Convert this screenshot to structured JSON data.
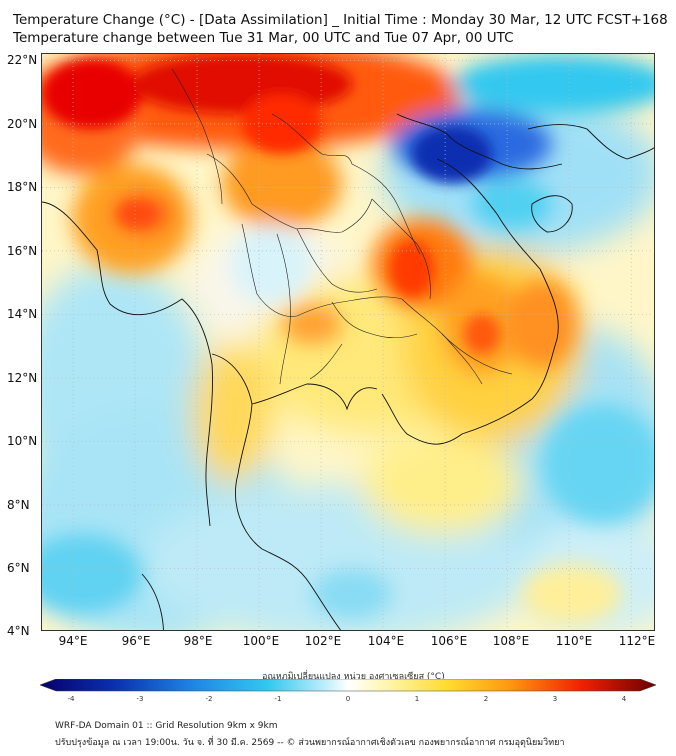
{
  "title_line1": "Temperature Change (°C) - [Data Assimilation] _ Initial Time : Monday 30 Mar, 12 UTC FCST+168",
  "title_line2": "Temperature change between Tue 31 Mar, 00 UTC and Tue 07 Apr, 00 UTC",
  "map": {
    "lon_range": [
      93,
      112.8
    ],
    "lat_range": [
      4,
      22.2
    ],
    "lat_ticks": [
      "22°N",
      "20°N",
      "18°N",
      "16°N",
      "14°N",
      "12°N",
      "10°N",
      "8°N",
      "6°N",
      "4°N"
    ],
    "lon_ticks": [
      "94°E",
      "96°E",
      "98°E",
      "100°E",
      "102°E",
      "104°E",
      "106°E",
      "108°E",
      "110°E",
      "112°E"
    ],
    "lat_values": [
      22,
      20,
      18,
      16,
      14,
      12,
      10,
      8,
      6,
      4
    ],
    "lon_values": [
      94,
      96,
      98,
      100,
      102,
      104,
      106,
      108,
      110,
      112
    ],
    "grid": true
  },
  "colorbar": {
    "title": "อุณหภูมิเปลี่ยนแปลง หน่วย องศาเซลเซียส (°C)",
    "range": [
      -4,
      4
    ],
    "labels": [
      "-4",
      "-3",
      "-2",
      "-1",
      "0",
      "1",
      "2",
      "3",
      "4"
    ],
    "label_values": [
      -4,
      -3,
      -2,
      -1,
      0,
      1,
      2,
      3,
      4
    ]
  },
  "colors": {
    "strong_cool": "#0a2fb0",
    "cool": "#33c8f0",
    "light_cool": "#aeeaf8",
    "neutral": "#ffffff",
    "light_warm": "#fff4a0",
    "warm": "#ffc400",
    "hot": "#ff6a00",
    "strong_hot": "#e00000"
  },
  "footer_line1": "WRF-DA Domain 01 :: Grid Resolution 9km x 9km",
  "footer_line2": "ปรับปรุงข้อมูล ณ เวลา 19:00น. วัน จ. ที่ 30 มี.ค. 2569 -- © ส่วนพยากรณ์อากาศเชิงตัวเลข กองพยากรณ์อากาศ กรมอุตุนิยมวิทยา"
}
